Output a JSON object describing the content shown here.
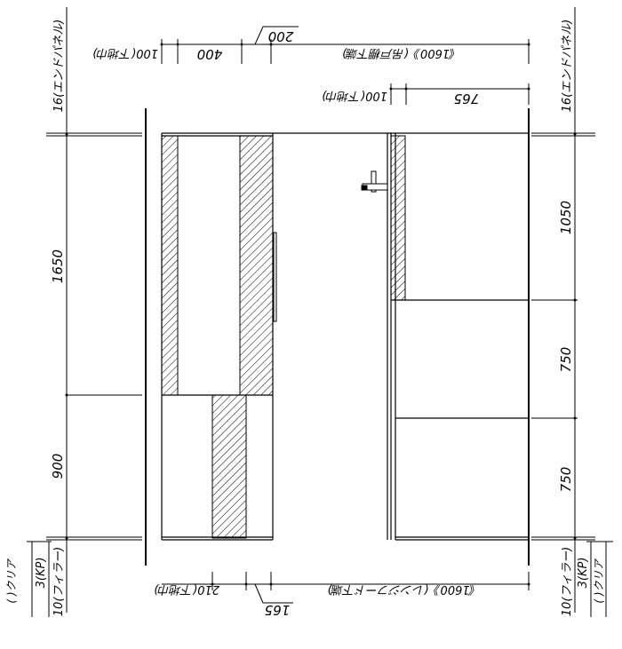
{
  "top_dims": {
    "d200": "200",
    "d400": "400",
    "d100_left": "100(下地巾)",
    "d1600_top": "《1600》(吊戸棚下端)",
    "d765": "765",
    "d100_right": "100(下地巾)"
  },
  "left_dims": {
    "panel_left": "16(エンドパネル)",
    "d1650": "1650",
    "d900": "900",
    "bottom_1": "(  )クリア",
    "bottom_2": "3(KP)",
    "bottom_3": "10(フィラー)"
  },
  "right_dims": {
    "panel_right": "16(エンドパネル)",
    "d1050": "1050",
    "d750_upper": "750",
    "d750_lower": "750",
    "bottom_1": "(  )クリア",
    "bottom_2": "3(KP)",
    "bottom_3": "10(フィラー)"
  },
  "bottom_dims": {
    "d210": "210(下地巾)",
    "d165": "165",
    "d1600_bottom": "《1600》(レンジフード下端)"
  }
}
